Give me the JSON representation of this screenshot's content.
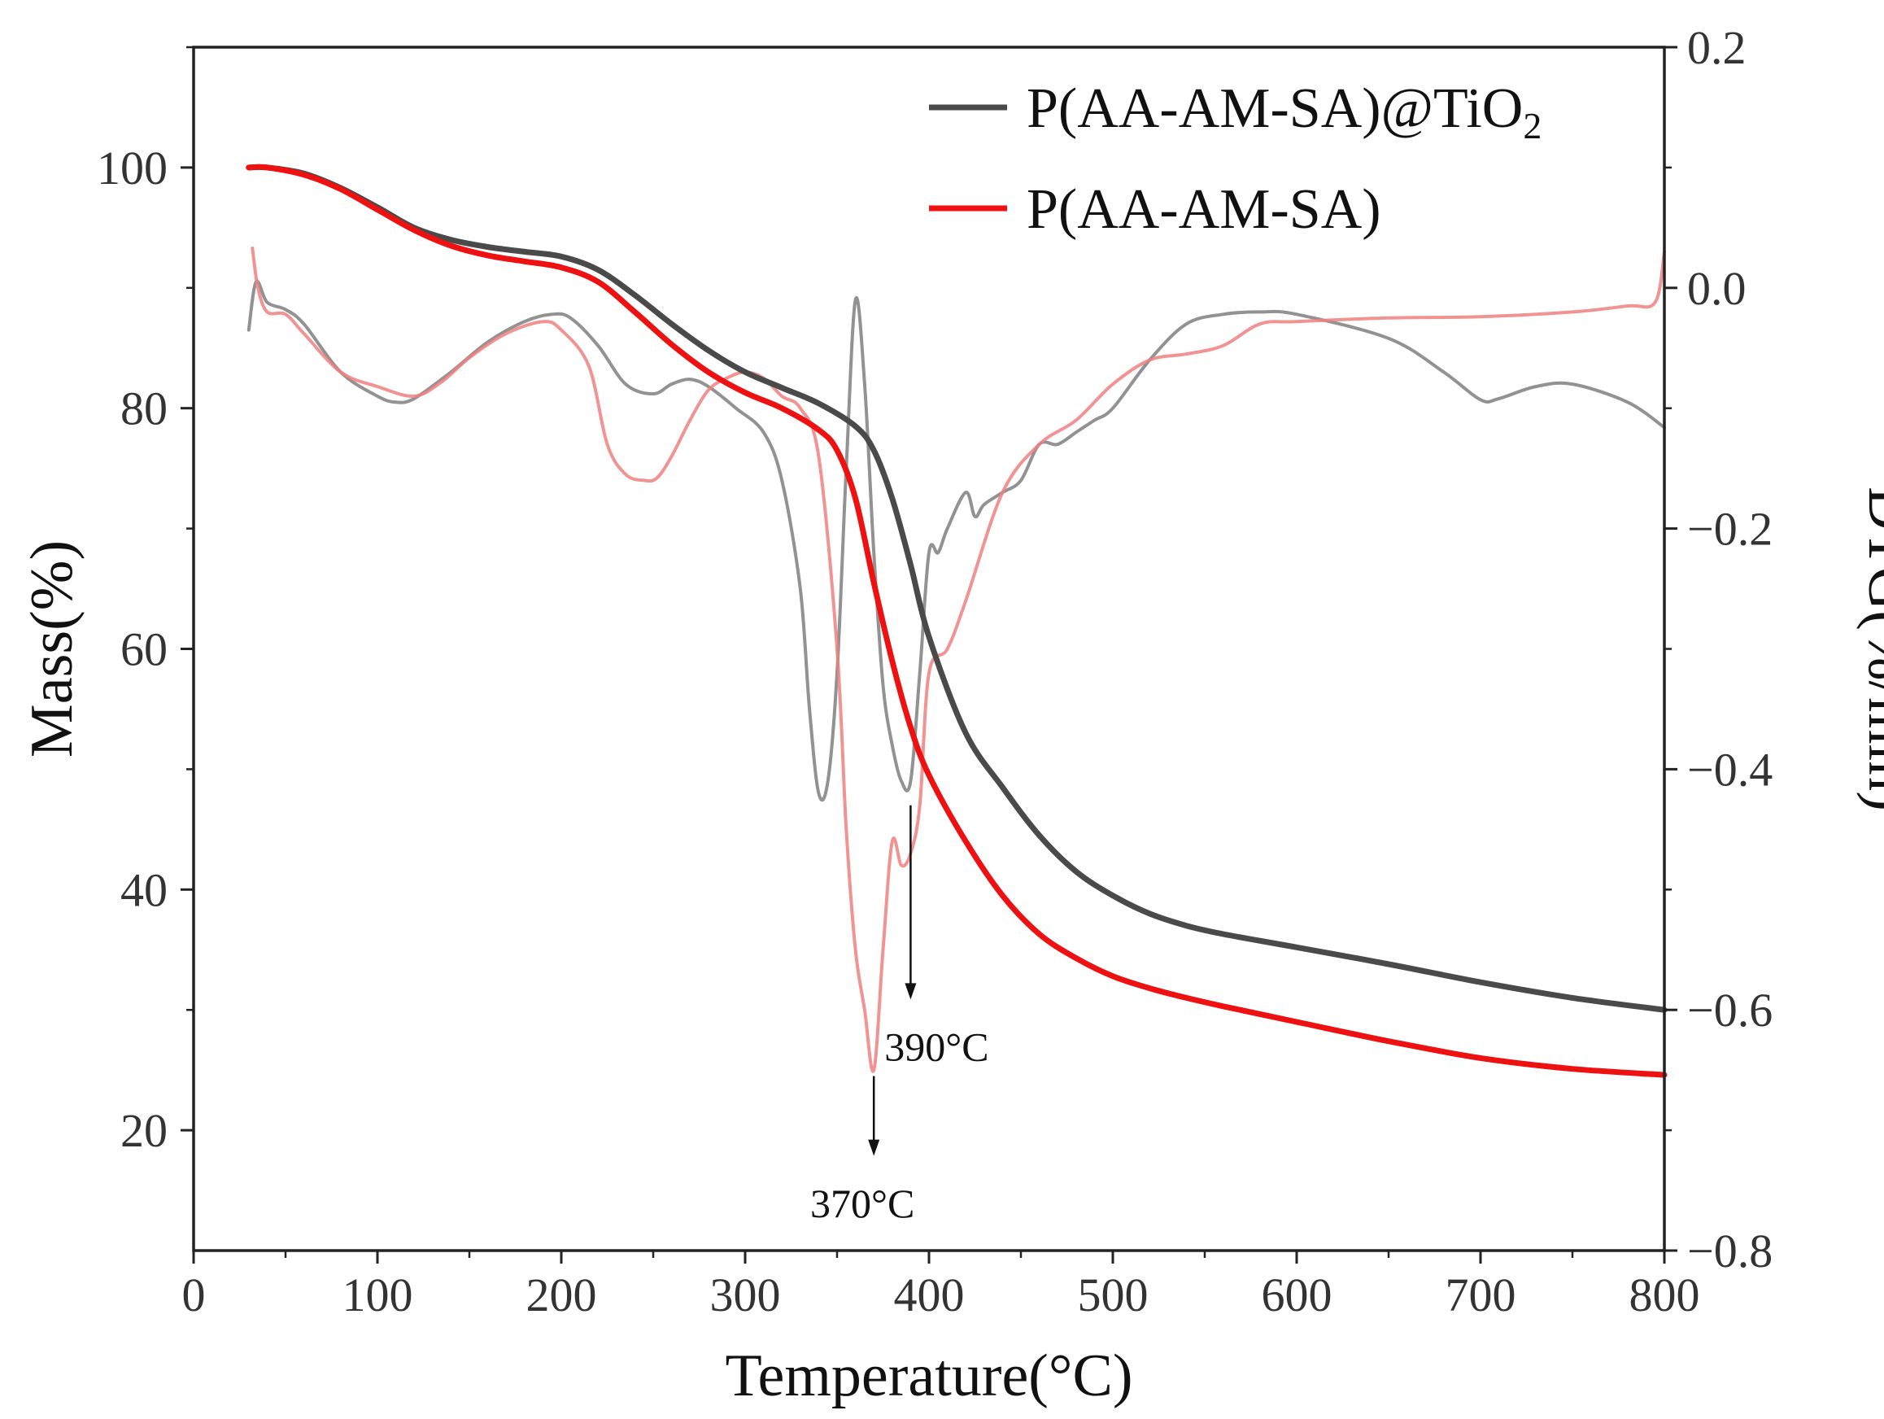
{
  "chart_data": {
    "type": "line",
    "title": "",
    "xlabel": "Temperature(°C)",
    "ylabel_left": "Mass(%)",
    "ylabel_right": "DTG(%/min)",
    "xlim": [
      0,
      800
    ],
    "ylim_left": [
      10,
      110
    ],
    "ylim_right": [
      -0.8,
      0.2
    ],
    "x_ticks": [
      0,
      100,
      200,
      300,
      400,
      500,
      600,
      700,
      800
    ],
    "y_left_ticks": [
      20,
      40,
      60,
      80,
      100
    ],
    "y_right_ticks": [
      -0.8,
      -0.6,
      -0.4,
      -0.2,
      0.0,
      0.2
    ],
    "x_tick_labels": [
      "0",
      "100",
      "200",
      "300",
      "400",
      "500",
      "600",
      "700",
      "800"
    ],
    "y_left_tick_labels": [
      "20",
      "40",
      "60",
      "80",
      "100"
    ],
    "y_right_tick_labels": [
      "−0.8",
      "−0.6",
      "−0.4",
      "−0.2",
      "0.0",
      "0.2"
    ],
    "grid": false,
    "legend_position": "top-right",
    "legend": [
      {
        "label": "P(AA-AM-SA)@TiO",
        "subscript": "2",
        "color": "#4a4a4a"
      },
      {
        "label": "P(AA-AM-SA)",
        "subscript": "",
        "color": "#ee1111"
      }
    ],
    "series": [
      {
        "name": "P(AA-AM-SA)@TiO2 mass",
        "axis": "left",
        "color": "#4a4a4a",
        "opacity": 1,
        "x": [
          30,
          40,
          60,
          80,
          100,
          120,
          140,
          160,
          180,
          200,
          220,
          240,
          260,
          280,
          300,
          320,
          340,
          360,
          370,
          380,
          390,
          400,
          420,
          440,
          460,
          480,
          500,
          520,
          540,
          560,
          600,
          650,
          700,
          750,
          800
        ],
        "y": [
          100,
          100,
          99.5,
          98.3,
          96.7,
          95.0,
          94.0,
          93.4,
          93.0,
          92.6,
          91.5,
          89.4,
          87.0,
          84.8,
          83.0,
          81.7,
          80.4,
          78.5,
          76.5,
          72.5,
          67.0,
          61.0,
          53.0,
          48.5,
          44.5,
          41.5,
          39.5,
          38.0,
          37.0,
          36.3,
          35.2,
          33.8,
          32.3,
          31.0,
          30.0
        ]
      },
      {
        "name": "P(AA-AM-SA) mass",
        "axis": "left",
        "color": "#ee1111",
        "opacity": 1,
        "x": [
          30,
          40,
          60,
          80,
          100,
          120,
          140,
          160,
          180,
          200,
          220,
          240,
          260,
          280,
          300,
          320,
          340,
          350,
          360,
          370,
          380,
          390,
          400,
          420,
          440,
          460,
          480,
          500,
          520,
          540,
          560,
          600,
          650,
          700,
          750,
          800
        ],
        "y": [
          100,
          100,
          99.4,
          98.2,
          96.5,
          94.8,
          93.5,
          92.7,
          92.2,
          91.7,
          90.5,
          88.0,
          85.3,
          83.0,
          81.3,
          80.0,
          78.2,
          76.5,
          72.5,
          65.5,
          59.0,
          53.5,
          49.5,
          44.0,
          39.5,
          36.3,
          34.3,
          32.8,
          31.8,
          31.0,
          30.3,
          29.0,
          27.4,
          26.0,
          25.1,
          24.6
        ]
      },
      {
        "name": "P(AA-AM-SA)@TiO2 DTG",
        "axis": "right",
        "color": "#7f7f7f",
        "opacity": 0.85,
        "x": [
          30,
          34,
          40,
          50,
          60,
          80,
          100,
          110,
          120,
          140,
          160,
          180,
          195,
          205,
          220,
          235,
          250,
          260,
          270,
          280,
          295,
          310,
          320,
          330,
          335,
          340,
          345,
          350,
          355,
          360,
          365,
          370,
          375,
          380,
          385,
          390,
          395,
          400,
          405,
          410,
          420,
          425,
          430,
          440,
          450,
          460,
          470,
          480,
          490,
          500,
          520,
          540,
          560,
          580,
          600,
          650,
          680,
          700,
          710,
          730,
          750,
          780,
          800
        ],
        "y": [
          -0.035,
          0.005,
          -0.012,
          -0.018,
          -0.03,
          -0.07,
          -0.09,
          -0.095,
          -0.092,
          -0.07,
          -0.045,
          -0.028,
          -0.022,
          -0.025,
          -0.048,
          -0.08,
          -0.088,
          -0.08,
          -0.076,
          -0.082,
          -0.1,
          -0.12,
          -0.16,
          -0.25,
          -0.35,
          -0.42,
          -0.41,
          -0.32,
          -0.15,
          -0.01,
          -0.08,
          -0.22,
          -0.33,
          -0.38,
          -0.41,
          -0.41,
          -0.32,
          -0.22,
          -0.22,
          -0.2,
          -0.17,
          -0.19,
          -0.18,
          -0.17,
          -0.16,
          -0.13,
          -0.13,
          -0.12,
          -0.11,
          -0.1,
          -0.06,
          -0.03,
          -0.022,
          -0.02,
          -0.022,
          -0.042,
          -0.07,
          -0.093,
          -0.092,
          -0.082,
          -0.08,
          -0.095,
          -0.116
        ]
      },
      {
        "name": "P(AA-AM-SA) DTG",
        "axis": "right",
        "color": "#f08080",
        "opacity": 0.85,
        "x": [
          32,
          35,
          40,
          50,
          60,
          80,
          100,
          120,
          135,
          150,
          170,
          190,
          200,
          215,
          225,
          235,
          245,
          252,
          260,
          270,
          280,
          290,
          300,
          310,
          320,
          330,
          340,
          350,
          355,
          360,
          365,
          370,
          375,
          380,
          385,
          390,
          395,
          400,
          410,
          420,
          440,
          460,
          480,
          500,
          520,
          540,
          560,
          580,
          600,
          650,
          700,
          750,
          780,
          795,
          800
        ],
        "y": [
          0.033,
          0.0,
          -0.02,
          -0.022,
          -0.038,
          -0.07,
          -0.082,
          -0.09,
          -0.078,
          -0.058,
          -0.038,
          -0.028,
          -0.035,
          -0.065,
          -0.13,
          -0.155,
          -0.16,
          -0.158,
          -0.14,
          -0.11,
          -0.085,
          -0.075,
          -0.07,
          -0.075,
          -0.09,
          -0.1,
          -0.14,
          -0.3,
          -0.45,
          -0.55,
          -0.6,
          -0.65,
          -0.55,
          -0.46,
          -0.48,
          -0.47,
          -0.43,
          -0.32,
          -0.3,
          -0.26,
          -0.17,
          -0.13,
          -0.11,
          -0.08,
          -0.06,
          -0.055,
          -0.048,
          -0.03,
          -0.028,
          -0.025,
          -0.024,
          -0.02,
          -0.015,
          -0.012,
          0.03
        ]
      }
    ],
    "annotations": [
      {
        "text": "390°C",
        "x": 390,
        "arrow_from_y": -0.43,
        "arrow_to_y": -0.59,
        "label_y": -0.63
      },
      {
        "text": "370°C",
        "x": 370,
        "arrow_from_y": -0.655,
        "arrow_to_y": -0.72,
        "label_y": -0.76
      }
    ]
  }
}
